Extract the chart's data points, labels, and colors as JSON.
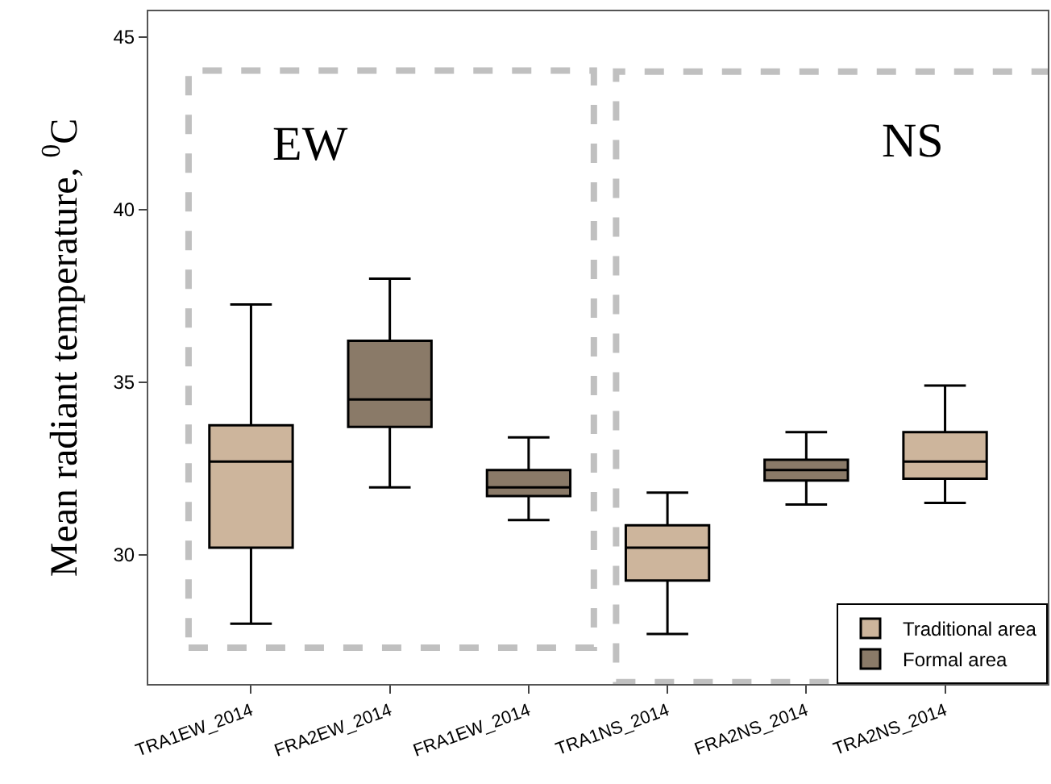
{
  "chart_data": {
    "type": "box",
    "ylabel": "Mean radiant temperature, $^{0}$C",
    "categories": [
      "TRA1EW_2014",
      "FRA2EW_2014",
      "FRA1EW_2014",
      "TRA1NS_2014",
      "FRA2NS_2014",
      "TRA2NS_2014"
    ],
    "series": [
      {
        "name": "Traditional area",
        "color": "#cdb59c",
        "boxes": [
          {
            "low": 28.0,
            "q1": 30.2,
            "median": 32.7,
            "q3": 33.75,
            "high": 37.25
          },
          null,
          null,
          {
            "low": 27.7,
            "q1": 29.25,
            "median": 30.2,
            "q3": 30.85,
            "high": 31.8
          },
          null,
          {
            "low": 31.5,
            "q1": 32.2,
            "median": 32.7,
            "q3": 33.55,
            "high": 34.9
          }
        ]
      },
      {
        "name": "Formal area",
        "color": "#8a7a68",
        "boxes": [
          null,
          {
            "low": 31.95,
            "q1": 33.7,
            "median": 34.5,
            "q3": 36.2,
            "high": 38.0
          },
          {
            "low": 31.0,
            "q1": 31.7,
            "median": 31.95,
            "q3": 32.45,
            "high": 33.4
          },
          null,
          {
            "low": 31.45,
            "q1": 32.15,
            "median": 32.45,
            "q3": 32.75,
            "high": 33.55
          },
          null
        ]
      }
    ],
    "ylim": [
      26.25,
      45.75
    ],
    "yticks": [
      30,
      35,
      40,
      45
    ],
    "annotations": [
      "EW",
      "NS"
    ],
    "grid": false,
    "legend": "bottom right"
  }
}
